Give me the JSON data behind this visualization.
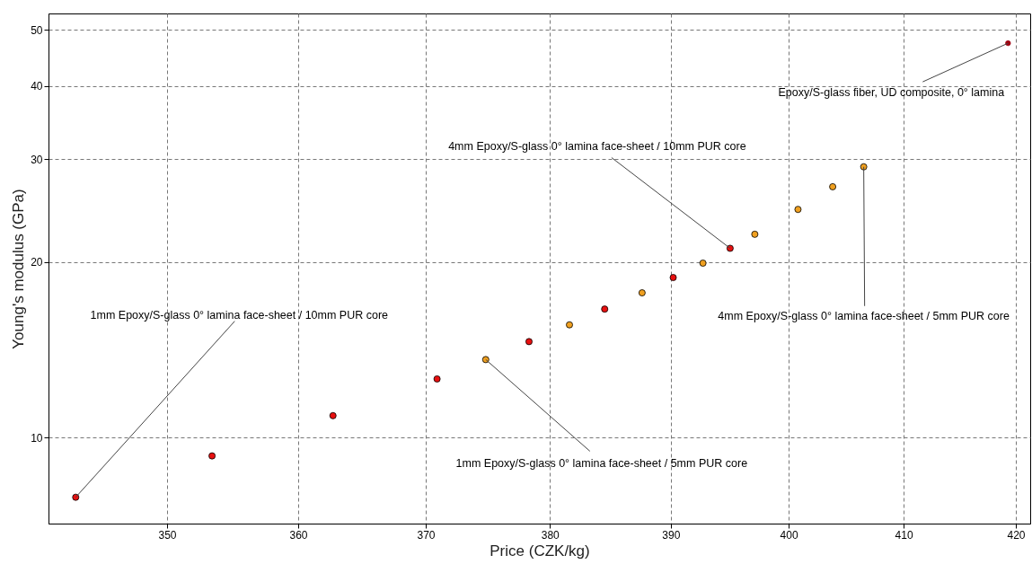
{
  "chart_data": {
    "type": "scatter",
    "xlabel": "Price (CZK/kg)",
    "ylabel": "Young's modulus (GPa)",
    "log": "xy",
    "grid": true,
    "marker": "circle",
    "xlim": [
      341.2,
      421.3
    ],
    "ylim": [
      7.12,
      53.3
    ],
    "xticks": [
      350,
      360,
      370,
      380,
      390,
      400,
      410,
      420
    ],
    "yticks": [
      10,
      20,
      30,
      40,
      50
    ],
    "series": [
      {
        "color": "#e81010",
        "x": [
          343.2,
          353.4,
          362.7,
          370.9,
          378.3,
          384.5,
          390.2,
          395.0
        ],
        "values": [
          7.9,
          9.3,
          10.9,
          12.6,
          14.6,
          16.6,
          18.8,
          21.1
        ]
      },
      {
        "color": "#f0a020",
        "x": [
          374.8,
          381.6,
          387.6,
          392.7,
          397.1,
          400.8,
          403.8,
          406.5
        ],
        "values": [
          13.6,
          15.6,
          17.7,
          19.9,
          22.3,
          24.6,
          26.9,
          29.1
        ]
      },
      {
        "color": "#a00010",
        "x": [
          419.3
        ],
        "values": [
          47.4
        ]
      }
    ],
    "annotations": [
      {
        "text": "1mm Epoxy/S-glass 0° lamina face-sheet / 10mm PUR core",
        "x": 343.2,
        "y": 7.9
      },
      {
        "text": "1mm Epoxy/S-glass 0° lamina face-sheet / 5mm PUR core",
        "x": 374.8,
        "y": 13.6
      },
      {
        "text": "4mm Epoxy/S-glass 0° lamina face-sheet / 10mm PUR core",
        "x": 395.0,
        "y": 21.1
      },
      {
        "text": "4mm Epoxy/S-glass 0° lamina face-sheet / 5mm PUR core",
        "x": 406.5,
        "y": 29.1
      },
      {
        "text": "Epoxy/S-glass fiber, UD composite, 0° lamina",
        "x": 419.3,
        "y": 47.4
      }
    ]
  }
}
